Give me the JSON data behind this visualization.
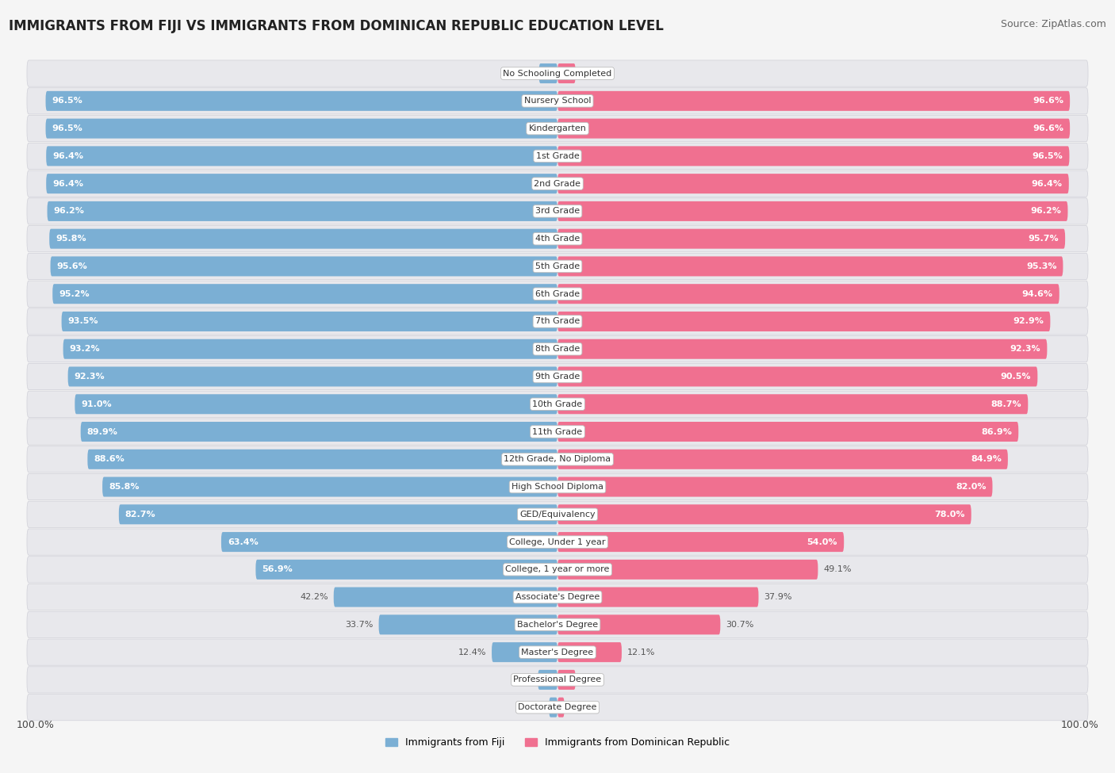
{
  "title": "IMMIGRANTS FROM FIJI VS IMMIGRANTS FROM DOMINICAN REPUBLIC EDUCATION LEVEL",
  "source": "Source: ZipAtlas.com",
  "categories": [
    "No Schooling Completed",
    "Nursery School",
    "Kindergarten",
    "1st Grade",
    "2nd Grade",
    "3rd Grade",
    "4th Grade",
    "5th Grade",
    "6th Grade",
    "7th Grade",
    "8th Grade",
    "9th Grade",
    "10th Grade",
    "11th Grade",
    "12th Grade, No Diploma",
    "High School Diploma",
    "GED/Equivalency",
    "College, Under 1 year",
    "College, 1 year or more",
    "Associate's Degree",
    "Bachelor's Degree",
    "Master's Degree",
    "Professional Degree",
    "Doctorate Degree"
  ],
  "fiji_values": [
    3.5,
    96.5,
    96.5,
    96.4,
    96.4,
    96.2,
    95.8,
    95.6,
    95.2,
    93.5,
    93.2,
    92.3,
    91.0,
    89.9,
    88.6,
    85.8,
    82.7,
    63.4,
    56.9,
    42.2,
    33.7,
    12.4,
    3.7,
    1.6
  ],
  "dr_values": [
    3.4,
    96.6,
    96.6,
    96.5,
    96.4,
    96.2,
    95.7,
    95.3,
    94.6,
    92.9,
    92.3,
    90.5,
    88.7,
    86.9,
    84.9,
    82.0,
    78.0,
    54.0,
    49.1,
    37.9,
    30.7,
    12.1,
    3.4,
    1.3
  ],
  "fiji_color": "#7BAFD4",
  "dr_color": "#F07090",
  "row_bg_color": "#f0f0f0",
  "row_line_color": "#cccccc",
  "bg_color": "#f5f5f5",
  "label_inside_color": "#ffffff",
  "label_outside_color": "#555555",
  "legend_fiji": "Immigrants from Fiji",
  "legend_dr": "Immigrants from Dominican Republic",
  "title_fontsize": 12,
  "source_fontsize": 9,
  "label_fontsize": 8,
  "cat_fontsize": 8
}
